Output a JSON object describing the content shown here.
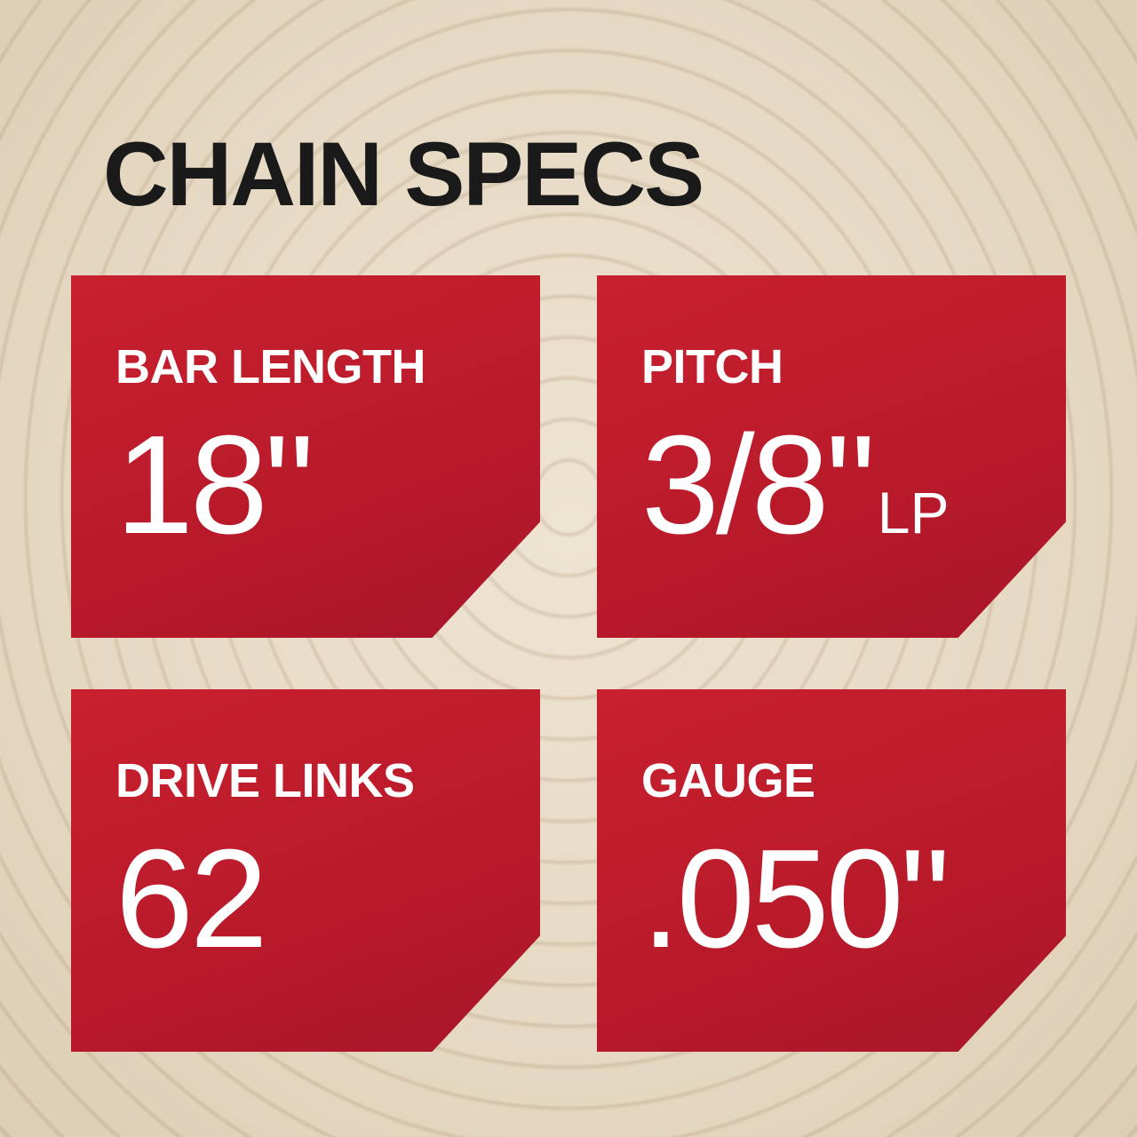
{
  "title": "CHAIN SPECS",
  "colors": {
    "card": "#c01d2d",
    "text": "#ffffff",
    "title": "#1a1a1a"
  },
  "specs": [
    {
      "label": "BAR LENGTH",
      "value": "18\"",
      "suffix": ""
    },
    {
      "label": "PITCH",
      "value": "3/8\"",
      "suffix": "LP"
    },
    {
      "label": "DRIVE LINKS",
      "value": "62",
      "suffix": ""
    },
    {
      "label": "GAUGE",
      "value": ".050\"",
      "suffix": ""
    }
  ]
}
